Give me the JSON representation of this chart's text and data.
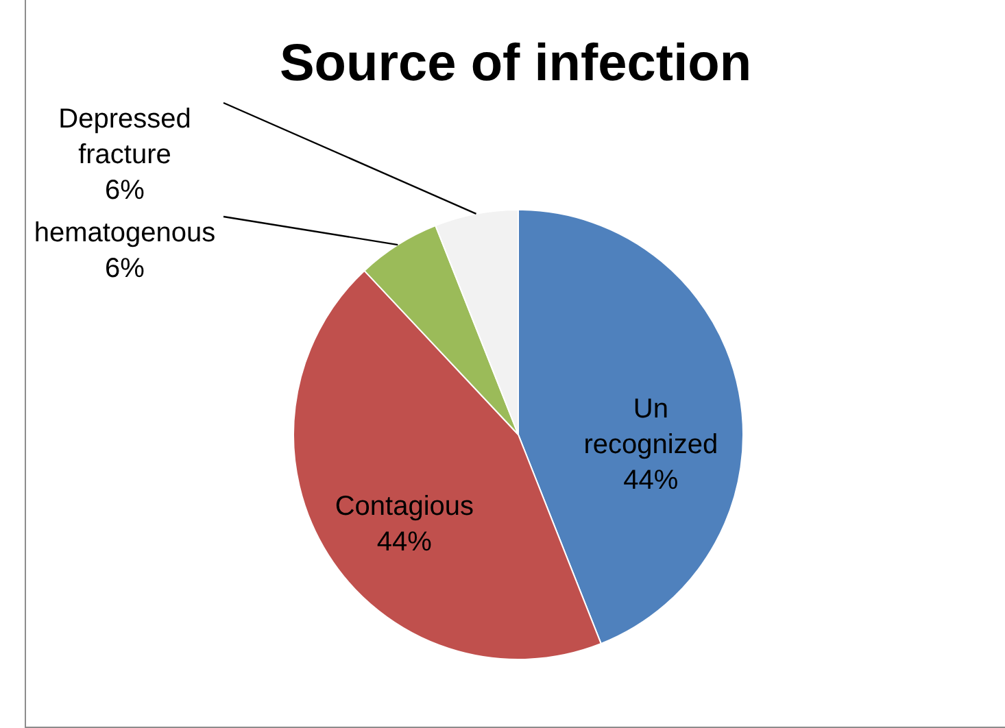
{
  "chart_data": {
    "type": "pie",
    "title": "Source of infection",
    "categories": [
      "Un recognized",
      "Contagious",
      "hematogenous",
      "Depressed fracture"
    ],
    "values": [
      44,
      44,
      6,
      6
    ],
    "value_labels": [
      "44%",
      "44%",
      "6%",
      "6%"
    ],
    "colors": [
      "#4f81bd",
      "#c0504d",
      "#9bbb59",
      "#f2f2f2"
    ]
  }
}
